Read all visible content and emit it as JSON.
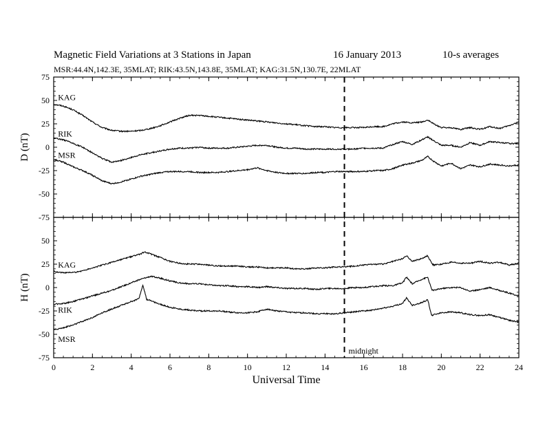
{
  "header": {
    "title": "Magnetic Field Variations at 3 Stations in Japan",
    "date": "16 January 2013",
    "averaging": "10-s averages",
    "subtitle": "MSR:44.4N,142.3E, 35MLAT;  RIK:43.5N,143.8E, 35MLAT;  KAG:31.5N,130.7E, 22MLAT"
  },
  "chart_data": [
    {
      "type": "line",
      "panel": "top",
      "ylabel": "D (nT)",
      "ylim": [
        -75,
        75
      ],
      "yticks": [
        -75,
        -50,
        -25,
        0,
        25,
        50,
        75
      ],
      "xlim": [
        0,
        24
      ],
      "xticks": [
        0,
        2,
        4,
        6,
        8,
        10,
        12,
        14,
        16,
        18,
        20,
        22,
        24
      ],
      "series": [
        {
          "name": "KAG",
          "x": [
            0,
            0.5,
            1,
            1.5,
            2,
            2.5,
            3,
            3.5,
            4,
            4.5,
            5,
            5.5,
            6,
            6.5,
            7,
            7.5,
            8,
            8.5,
            9,
            9.5,
            10,
            10.5,
            11,
            11.5,
            12,
            12.5,
            13,
            13.5,
            14,
            14.5,
            15,
            15.5,
            16,
            16.5,
            17,
            17.5,
            18,
            18.5,
            19,
            19.3,
            19.6,
            20,
            20.5,
            21,
            21.5,
            22,
            22.5,
            23,
            23.5,
            24
          ],
          "y": [
            46,
            44,
            40,
            34,
            27,
            21,
            18,
            17,
            17,
            18,
            20,
            23,
            27,
            31,
            34,
            34,
            33,
            32,
            31,
            30,
            29,
            28,
            27,
            26,
            25,
            24,
            23,
            22,
            22,
            21,
            21,
            21,
            21,
            22,
            22,
            25,
            27,
            26,
            27,
            29,
            25,
            21,
            21,
            19,
            21,
            19,
            22,
            20,
            23,
            27
          ]
        },
        {
          "name": "RIK",
          "x": [
            0,
            0.5,
            1,
            1.5,
            2,
            2.5,
            3,
            3.5,
            4,
            4.5,
            5,
            5.5,
            6,
            6.5,
            7,
            7.5,
            8,
            8.5,
            9,
            9.5,
            10,
            10.5,
            11,
            11.5,
            12,
            12.5,
            13,
            13.5,
            14,
            14.5,
            15,
            15.5,
            16,
            16.5,
            17,
            17.5,
            18,
            18.5,
            19,
            19.3,
            19.6,
            20,
            20.5,
            21,
            21.5,
            22,
            22.5,
            23,
            23.5,
            24
          ],
          "y": [
            10,
            8,
            4,
            0,
            -6,
            -12,
            -16,
            -14,
            -11,
            -8,
            -6,
            -4,
            -2,
            -1,
            -1,
            0,
            -1,
            -1,
            -1,
            0,
            1,
            2,
            2,
            0,
            -1,
            -1,
            -2,
            -2,
            -2,
            -2,
            -2,
            -2,
            -1,
            -1,
            -1,
            3,
            6,
            3,
            8,
            11,
            7,
            2,
            2,
            0,
            5,
            2,
            6,
            5,
            4,
            4
          ]
        },
        {
          "name": "MSR",
          "x": [
            0,
            0.5,
            1,
            1.5,
            2,
            2.5,
            3,
            3.5,
            4,
            4.5,
            5,
            5.5,
            6,
            6.5,
            7,
            7.5,
            8,
            8.5,
            9,
            9.5,
            10,
            10.5,
            11,
            11.5,
            12,
            12.5,
            13,
            13.5,
            14,
            14.5,
            15,
            15.5,
            16,
            16.5,
            17,
            17.5,
            18,
            18.5,
            19,
            19.3,
            19.6,
            20,
            20.5,
            21,
            21.5,
            22,
            22.5,
            23,
            23.5,
            24
          ],
          "y": [
            -13,
            -16,
            -21,
            -25,
            -30,
            -36,
            -39,
            -37,
            -34,
            -31,
            -29,
            -27,
            -26,
            -26,
            -26,
            -27,
            -27,
            -27,
            -26,
            -25,
            -24,
            -22,
            -25,
            -27,
            -28,
            -28,
            -28,
            -27,
            -27,
            -26,
            -26,
            -26,
            -26,
            -25,
            -25,
            -23,
            -19,
            -17,
            -14,
            -10,
            -15,
            -20,
            -17,
            -23,
            -19,
            -21,
            -18,
            -19,
            -20,
            -19
          ]
        }
      ],
      "series_labels": [
        "KAG",
        "RIK",
        "MSR"
      ]
    },
    {
      "type": "line",
      "panel": "bottom",
      "ylabel": "H (nT)",
      "xlabel": "Universal Time",
      "ylim": [
        -75,
        75
      ],
      "yticks": [
        -75,
        -50,
        -25,
        0,
        25,
        50,
        75
      ],
      "xlim": [
        0,
        24
      ],
      "xticks": [
        0,
        2,
        4,
        6,
        8,
        10,
        12,
        14,
        16,
        18,
        20,
        22,
        24
      ],
      "series": [
        {
          "name": "KAG",
          "x": [
            0,
            0.5,
            1,
            1.5,
            2,
            2.5,
            3,
            3.5,
            4,
            4.5,
            4.7,
            5,
            5.5,
            6,
            6.5,
            7,
            7.5,
            8,
            8.5,
            9,
            9.5,
            10,
            10.5,
            11,
            11.5,
            12,
            12.5,
            13,
            13.5,
            14,
            14.5,
            15,
            15.5,
            16,
            16.5,
            17,
            17.5,
            18,
            18.2,
            18.5,
            19,
            19.3,
            19.5,
            19.6,
            20,
            20.5,
            21,
            21.5,
            22,
            22.5,
            23,
            23.5,
            24
          ],
          "y": [
            17,
            16,
            16,
            18,
            21,
            24,
            27,
            30,
            33,
            36,
            38,
            36,
            32,
            28,
            26,
            25,
            25,
            24,
            23,
            23,
            23,
            22,
            22,
            21,
            21,
            21,
            20,
            20,
            21,
            21,
            22,
            22,
            23,
            24,
            25,
            25,
            28,
            31,
            34,
            28,
            31,
            34,
            26,
            24,
            25,
            27,
            26,
            26,
            28,
            26,
            27,
            24,
            26
          ]
        },
        {
          "name": "RIK",
          "x": [
            0,
            0.5,
            1,
            1.5,
            2,
            2.5,
            3,
            3.5,
            4,
            4.5,
            5,
            5.5,
            6,
            6.5,
            7,
            7.5,
            8,
            8.5,
            9,
            9.5,
            10,
            10.5,
            11,
            11.5,
            12,
            12.5,
            13,
            13.5,
            14,
            14.5,
            15,
            15.5,
            16,
            16.5,
            17,
            17.5,
            18,
            18.2,
            18.5,
            19,
            19.3,
            19.5,
            19.6,
            20,
            20.5,
            21,
            21.5,
            22,
            22.5,
            23,
            23.5,
            24
          ],
          "y": [
            -18,
            -17,
            -15,
            -12,
            -9,
            -6,
            -3,
            1,
            5,
            9,
            12,
            10,
            7,
            5,
            4,
            4,
            3,
            2,
            2,
            1,
            1,
            0,
            1,
            0,
            -1,
            -1,
            -1,
            -2,
            -1,
            -1,
            -1,
            0,
            0,
            1,
            2,
            2,
            5,
            11,
            4,
            9,
            11,
            -2,
            -3,
            -1,
            0,
            0,
            -4,
            -2,
            0,
            -3,
            -6,
            -9
          ]
        },
        {
          "name": "MSR",
          "x": [
            0,
            0.5,
            1,
            1.5,
            2,
            2.5,
            3,
            3.5,
            4,
            4.4,
            4.6,
            4.8,
            5,
            5.5,
            6,
            6.5,
            7,
            7.5,
            8,
            8.5,
            9,
            9.5,
            10,
            10.5,
            11,
            11.5,
            12,
            12.5,
            13,
            13.5,
            14,
            14.5,
            15,
            15.5,
            16,
            16.5,
            17,
            17.5,
            18,
            18.2,
            18.5,
            19,
            19.3,
            19.5,
            19.6,
            20,
            20.5,
            21,
            21.5,
            22,
            22.5,
            23,
            23.5,
            24
          ],
          "y": [
            -45,
            -43,
            -40,
            -36,
            -32,
            -27,
            -23,
            -19,
            -15,
            -12,
            3,
            -13,
            -14,
            -18,
            -21,
            -23,
            -24,
            -25,
            -25,
            -25,
            -26,
            -27,
            -27,
            -26,
            -23,
            -25,
            -26,
            -27,
            -27,
            -28,
            -28,
            -28,
            -27,
            -26,
            -25,
            -24,
            -22,
            -20,
            -17,
            -11,
            -19,
            -16,
            -13,
            -30,
            -29,
            -27,
            -26,
            -27,
            -29,
            -30,
            -29,
            -32,
            -35,
            -37
          ]
        }
      ],
      "series_labels": [
        "KAG",
        "RIK",
        "MSR"
      ]
    }
  ],
  "annotation": {
    "x": 15,
    "label": "midnight"
  }
}
